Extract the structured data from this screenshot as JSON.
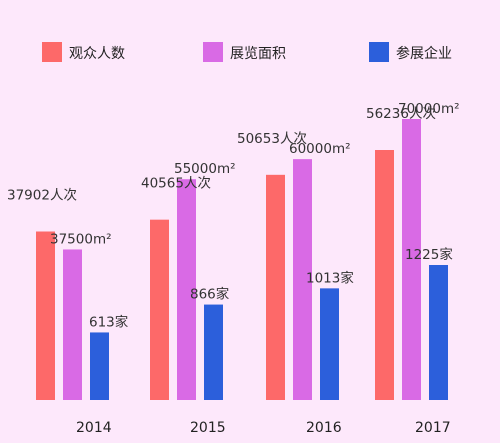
{
  "chart_data": {
    "type": "bar",
    "categories": [
      "2014",
      "2015",
      "2016",
      "2017"
    ],
    "series": [
      {
        "name": "观众人数",
        "color": "#fd6969",
        "values": [
          37902,
          40565,
          50653,
          56236
        ],
        "labels": [
          "37902人次",
          "40565人次",
          "50653人次",
          "56236人次"
        ]
      },
      {
        "name": "展览面积",
        "color": "#d96ae5",
        "values": [
          37500,
          55000,
          60000,
          70000
        ],
        "labels": [
          "37500m²",
          "55000m²",
          "60000m²",
          "70000m²"
        ]
      },
      {
        "name": "参展企业",
        "color": "#2c5fdb",
        "values": [
          613,
          866,
          1013,
          1225
        ],
        "labels": [
          "613家",
          "866家",
          "1013家",
          "1225家"
        ]
      }
    ],
    "legend_position": "top",
    "grid": false
  }
}
